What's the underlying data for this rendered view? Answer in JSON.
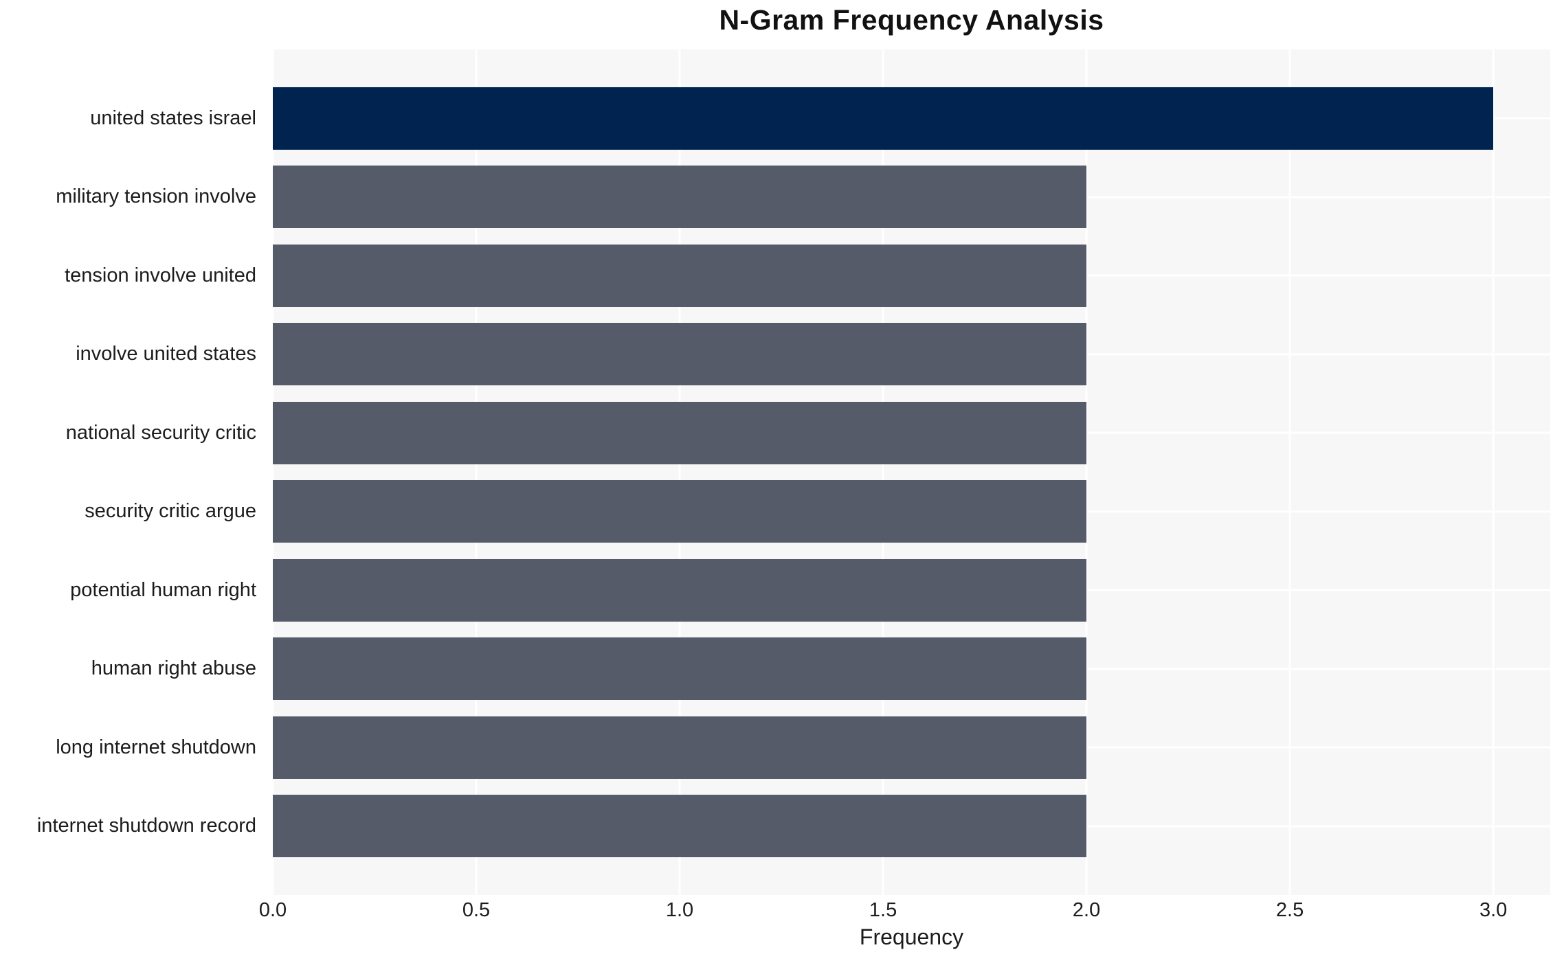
{
  "chart_data": {
    "type": "bar",
    "orientation": "horizontal",
    "title": "N-Gram Frequency Analysis",
    "xlabel": "Frequency",
    "ylabel": "",
    "categories": [
      "united states israel",
      "military tension involve",
      "tension involve united",
      "involve united states",
      "national security critic",
      "security critic argue",
      "potential human right",
      "human right abuse",
      "long internet shutdown",
      "internet shutdown record"
    ],
    "values": [
      3,
      2,
      2,
      2,
      2,
      2,
      2,
      2,
      2,
      2
    ],
    "xlim": [
      0,
      3.14
    ],
    "xtick_labels": [
      "0.0",
      "0.5",
      "1.0",
      "1.5",
      "2.0",
      "2.5",
      "3.0"
    ],
    "grid": true,
    "legend_position": "none",
    "colors": {
      "highlight_bar": "#012350",
      "default_bar": "#565b6a",
      "plot_background": "#f7f7f8",
      "gridline": "#ffffff",
      "text": "#1c1c1c"
    },
    "bar_colors": [
      "#012350",
      "#565b6a",
      "#565b6a",
      "#565b6a",
      "#565b6a",
      "#565b6a",
      "#565b6a",
      "#565b6a",
      "#565b6a",
      "#565b6a"
    ]
  }
}
